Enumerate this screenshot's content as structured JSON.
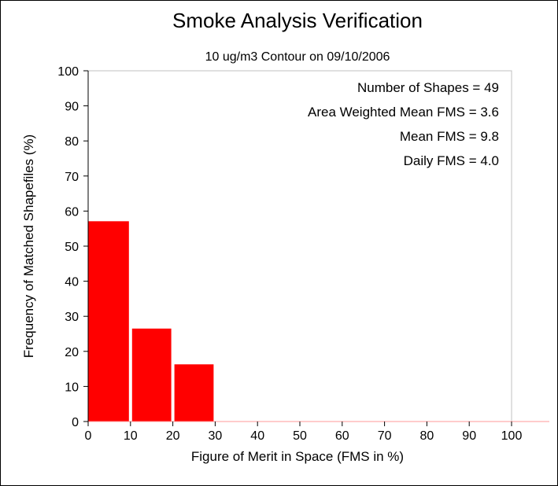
{
  "chart_data": {
    "type": "bar",
    "title": "Smoke Analysis Verification",
    "subtitle": "10 ug/m3 Contour on 09/10/2006",
    "xlabel": "Figure of Merit in Space (FMS in %)",
    "ylabel": "Frequency of Matched Shapefiles (%)",
    "xlim": [
      0,
      100
    ],
    "ylim": [
      0,
      100
    ],
    "xticks": [
      "0",
      "10",
      "20",
      "30",
      "40",
      "50",
      "60",
      "70",
      "80",
      "90",
      "100"
    ],
    "yticks": [
      "0",
      "10",
      "20",
      "30",
      "40",
      "50",
      "60",
      "70",
      "80",
      "90",
      "100"
    ],
    "bin_width": 10,
    "bins": [
      {
        "x0": 0,
        "x1": 10,
        "value": 57.1
      },
      {
        "x0": 10,
        "x1": 20,
        "value": 26.5
      },
      {
        "x0": 20,
        "x1": 30,
        "value": 16.3
      },
      {
        "x0": 30,
        "x1": 40,
        "value": 0
      },
      {
        "x0": 40,
        "x1": 50,
        "value": 0
      },
      {
        "x0": 50,
        "x1": 60,
        "value": 0
      },
      {
        "x0": 60,
        "x1": 70,
        "value": 0
      },
      {
        "x0": 70,
        "x1": 80,
        "value": 0
      },
      {
        "x0": 80,
        "x1": 90,
        "value": 0
      },
      {
        "x0": 90,
        "x1": 100,
        "value": 0
      }
    ],
    "bar_color": "#ff0000",
    "annotations": [
      "Number of Shapes = 49",
      "Area Weighted Mean FMS = 3.6",
      "Mean FMS = 9.8",
      "Daily FMS = 4.0"
    ],
    "grid": false
  }
}
